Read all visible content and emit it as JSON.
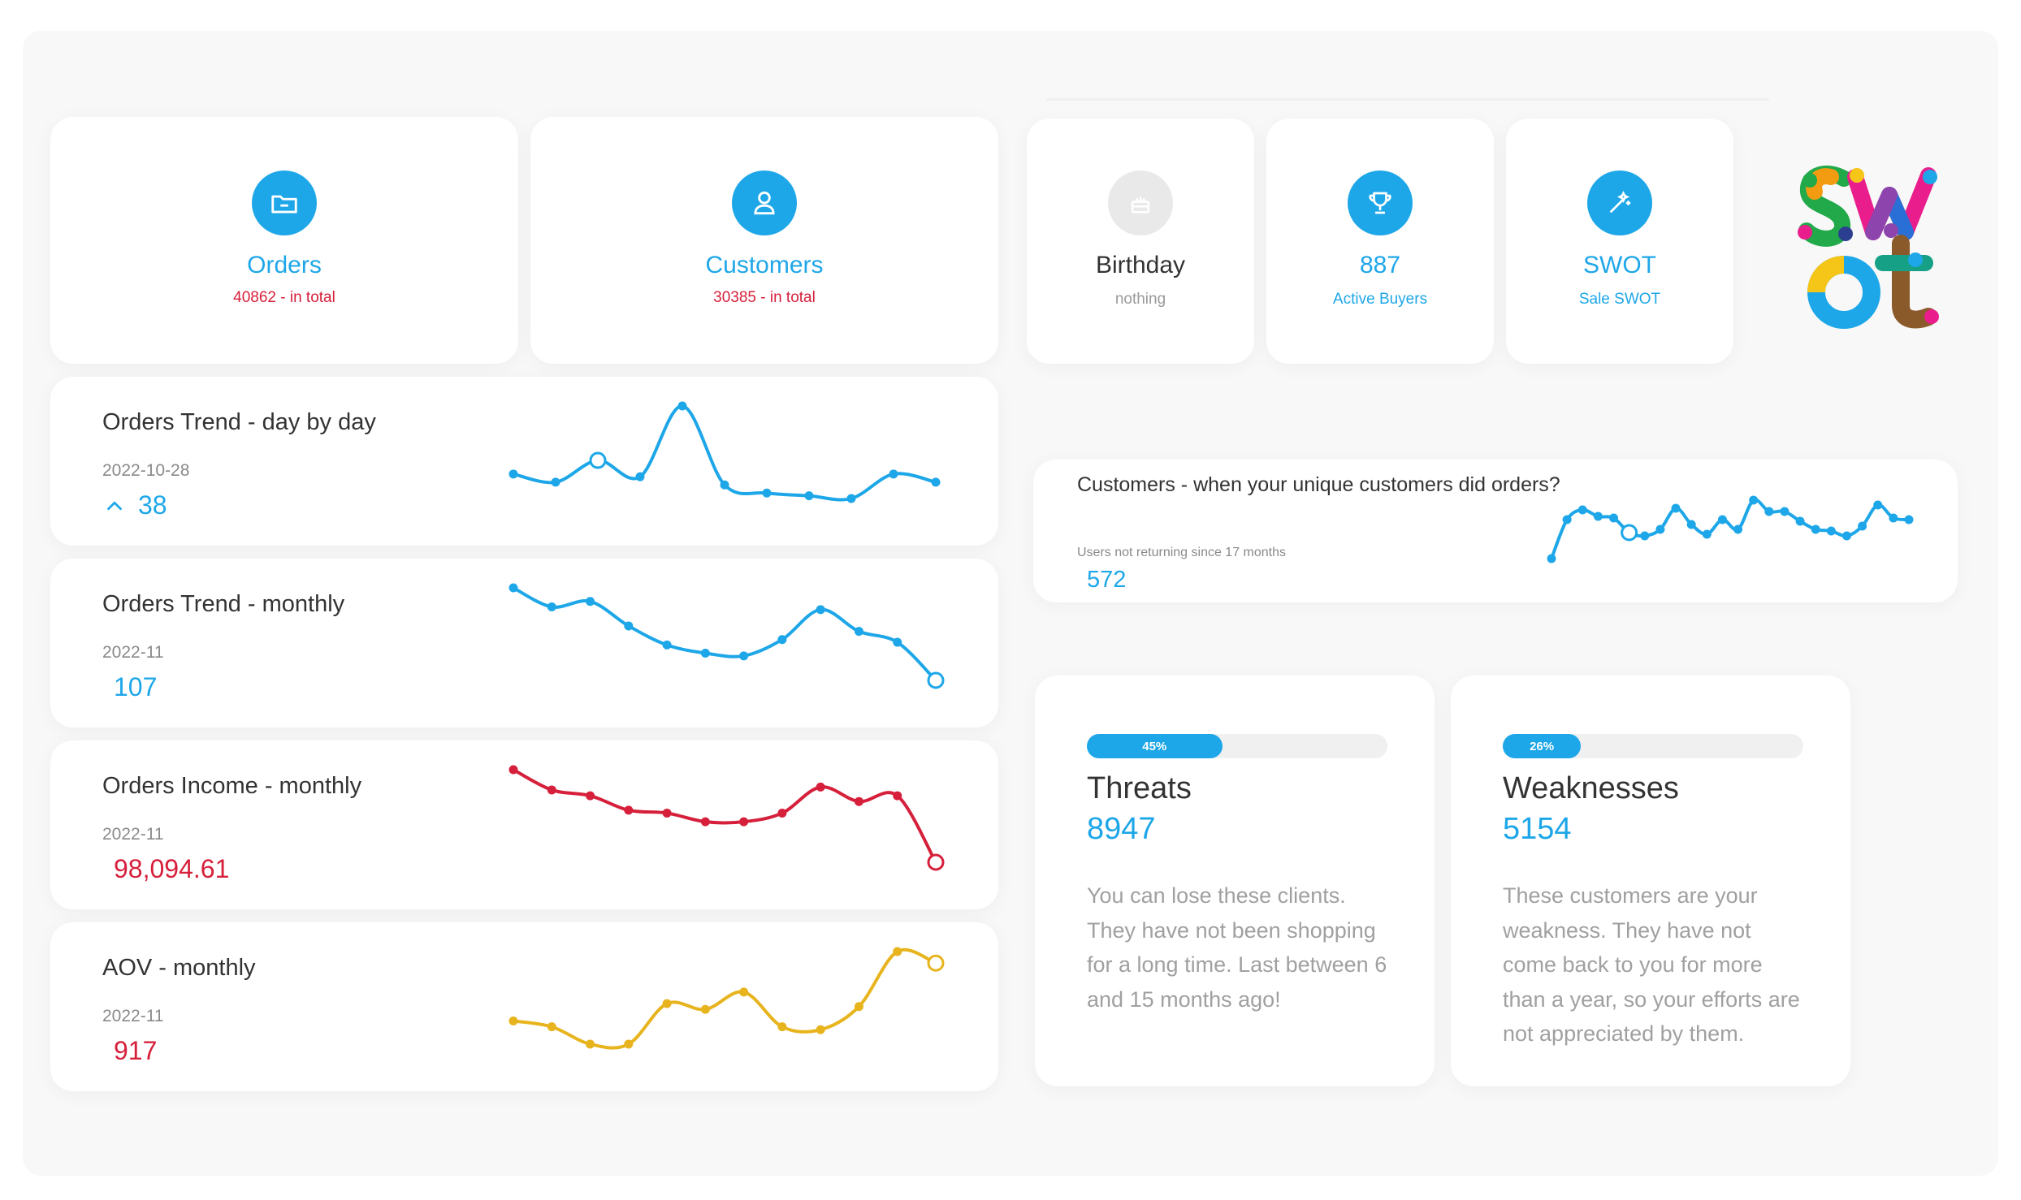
{
  "stats": {
    "orders": {
      "title": "Orders",
      "sub": "40862 - in total",
      "icon": "folder-icon"
    },
    "customers": {
      "title": "Customers",
      "sub": "30385 - in total",
      "icon": "user-icon"
    },
    "birthday": {
      "title": "Birthday",
      "sub": "nothing",
      "icon": "cake-icon"
    },
    "buyers": {
      "title": "887",
      "sub": "Active Buyers",
      "icon": "trophy-icon"
    },
    "swot": {
      "title": "SWOT",
      "sub": "Sale SWOT",
      "icon": "magic-wand-icon"
    }
  },
  "trends": {
    "orders_day": {
      "title": "Orders Trend - day by day",
      "date": "2022-10-28",
      "value": "38",
      "color": "#1ea7e8",
      "values": [
        33,
        30,
        38,
        32,
        58,
        29,
        26,
        25,
        24,
        33,
        30
      ],
      "highlight": 2,
      "trend": "up"
    },
    "orders_month": {
      "title": "Orders Trend - monthly",
      "date": "2022-11",
      "value": "107",
      "color": "#1ea7e8",
      "values": [
        168,
        161,
        163,
        154,
        147,
        144,
        143,
        149,
        160,
        152,
        148,
        134
      ],
      "highlight": 11
    },
    "income_month": {
      "title": "Orders Income - monthly",
      "date": "2022-11",
      "value": "98,094.61",
      "color": "#d6203b",
      "values": [
        168,
        161,
        159,
        154,
        153,
        150,
        150,
        153,
        162,
        157,
        159,
        136
      ],
      "highlight": 11
    },
    "aov_month": {
      "title": "AOV - monthly",
      "date": "2022-11",
      "value": "917",
      "color": "#e8b41e",
      "values": [
        140,
        138,
        132,
        132,
        146,
        144,
        150,
        138,
        137,
        145,
        164,
        160
      ],
      "highlight": 11
    }
  },
  "customers_card": {
    "title": "Customers - when your unique customers did orders?",
    "subtitle": "Users not returning since 17 months",
    "value": "572",
    "color": "#1ea7e8",
    "values": [
      4,
      28,
      34,
      30,
      29,
      20,
      18,
      22,
      35,
      25,
      19,
      28,
      22,
      40,
      33,
      33,
      27,
      22,
      21,
      18,
      24,
      37,
      29,
      28
    ],
    "highlight": 5
  },
  "swot_cards": {
    "threats": {
      "percent_label": "45%",
      "percent": 45,
      "title": "Threats",
      "value": "8947",
      "text": "You can lose these clients. They have not been shopping for a long time. Last between 6 and 15 months ago!"
    },
    "weaknesses": {
      "percent_label": "26%",
      "percent": 26,
      "title": "Weaknesses",
      "value": "5154",
      "text": "These customers are your weakness. They have not come back to you for more than a year, so your efforts are not appreciated by them."
    }
  },
  "colors": {
    "accent": "#1ea7e8",
    "red": "#d6203b",
    "yellow": "#e8b41e"
  }
}
